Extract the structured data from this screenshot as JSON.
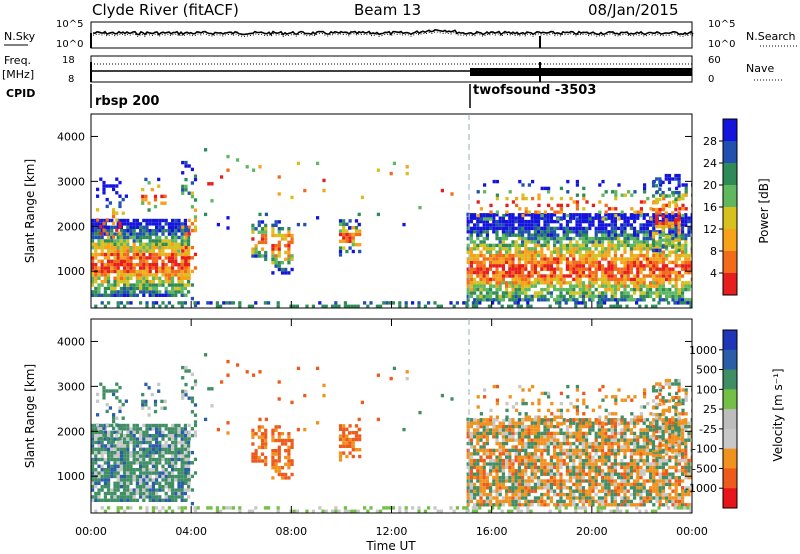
{
  "header": {
    "station": "Clyde River (fitACF)",
    "beam": "Beam 13",
    "date": "08/Jan/2015"
  },
  "noise_panel": {
    "left_label": "N.Sky",
    "right_label": "N.Search",
    "ticks_left": [
      "10^5",
      "10^0"
    ],
    "ticks_right": [
      "10^5",
      "10^0"
    ]
  },
  "freq_panel": {
    "left_label_1": "Freq.",
    "left_label_2": "[MHz]",
    "right_label": "Nave",
    "ticks_left": [
      "18",
      "8"
    ],
    "ticks_right": [
      "60",
      "0"
    ],
    "cpid_label": "CPID"
  },
  "cpid": {
    "segments": [
      {
        "name": "rbsp 200",
        "start_hour": 0
      },
      {
        "name": "twofsound -3503",
        "start_hour": 15.25
      }
    ]
  },
  "colors": {
    "power": [
      "#1414dc",
      "#2050b0",
      "#2e8b57",
      "#5fb85f",
      "#d6c11e",
      "#f7a21a",
      "#f26b1b",
      "#e61e1e"
    ],
    "velocity": [
      "#e8161b",
      "#ee5a1c",
      "#f2921e",
      "#c8c8c8",
      "#bdbdbd",
      "#74c046",
      "#3f8e64",
      "#2a5ea8",
      "#2036b8"
    ]
  },
  "chart_data": [
    {
      "type": "heatmap",
      "title": "Power",
      "xlabel": "",
      "ylabel": "Slant Range [km]",
      "xlim": [
        0,
        24
      ],
      "ylim": [
        180,
        4500
      ],
      "yticks": [
        "1000",
        "2000",
        "3000",
        "4000"
      ],
      "colorbar_label": "Power [dB]",
      "colorbar_ticks": [
        "4",
        "8",
        "12",
        "16",
        "20",
        "24",
        "28"
      ]
    },
    {
      "type": "heatmap",
      "title": "Velocity",
      "xlabel": "Time UT",
      "ylabel": "Slant Range [km]",
      "xlim": [
        0,
        24
      ],
      "ylim": [
        180,
        4500
      ],
      "yticks": [
        "1000",
        "2000",
        "3000",
        "4000"
      ],
      "xticks": [
        "00:00",
        "04:00",
        "08:00",
        "12:00",
        "16:00",
        "20:00",
        "00:00"
      ],
      "colorbar_label": "Velocity [m s⁻¹]",
      "colorbar_ticks": [
        "1000",
        "500",
        "100",
        "25",
        "-25",
        "-100",
        "-500",
        "-1000"
      ]
    }
  ]
}
